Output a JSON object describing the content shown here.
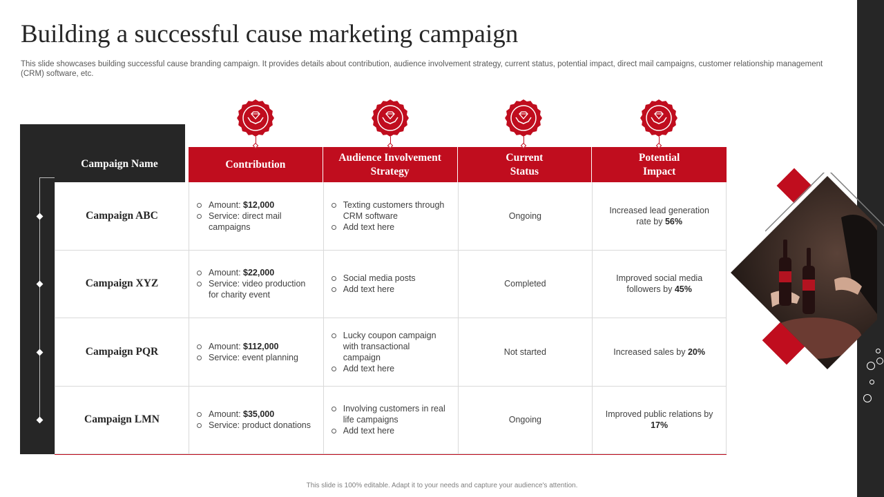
{
  "title": "Building a successful cause marketing campaign",
  "subtitle_line1": "This slide showcases building successful cause branding campaign. It provides details about contribution, audience involvement strategy, current status, potential impact, direct mail campaigns, customer relationship management",
  "subtitle_line2": "(CRM) software, etc.",
  "table": {
    "name_header": "Campaign Name",
    "headers": [
      "Contribution",
      "Audience Involvement Strategy",
      "Current Status",
      "Potential Impact"
    ],
    "rows": [
      {
        "name": "Campaign ABC",
        "contribution": {
          "amount_label": "Amount: ",
          "amount": "$12,000",
          "service": "Service: direct mail campaigns"
        },
        "strategy": [
          "Texting customers through CRM software",
          "Add text here"
        ],
        "status": "Ongoing",
        "impact_text": "Increased lead generation rate by ",
        "impact_value": "56%"
      },
      {
        "name": "Campaign XYZ",
        "contribution": {
          "amount_label": "Amount: ",
          "amount": "$22,000",
          "service": "Service: video production for charity event"
        },
        "strategy": [
          "Social media posts",
          "Add text here"
        ],
        "status": "Completed",
        "impact_text": "Improved social media followers by ",
        "impact_value": "45%"
      },
      {
        "name": "Campaign PQR",
        "contribution": {
          "amount_label": "Amount: ",
          "amount": "$112,000",
          "service": "Service: event planning"
        },
        "strategy": [
          "Lucky coupon campaign with transactional campaign",
          "Add text here"
        ],
        "status": "Not started",
        "impact_text": "Increased sales by ",
        "impact_value": "20%"
      },
      {
        "name": "Campaign LMN",
        "contribution": {
          "amount_label": "Amount: ",
          "amount": "$35,000",
          "service": "Service: product donations"
        },
        "strategy": [
          "Involving customers in real life campaigns",
          "Add text here"
        ],
        "status": "Ongoing",
        "impact_text": "Improved public relations by ",
        "impact_value": "17%"
      }
    ]
  },
  "icons": [
    "diamond-hands-icon",
    "diamond-hands-icon",
    "diamond-hands-icon",
    "diamond-hands-icon"
  ],
  "colors": {
    "accent": "#c00d1e",
    "dark": "#262626"
  },
  "footer": "This slide is 100% editable. Adapt it to your needs and capture your audience's attention."
}
